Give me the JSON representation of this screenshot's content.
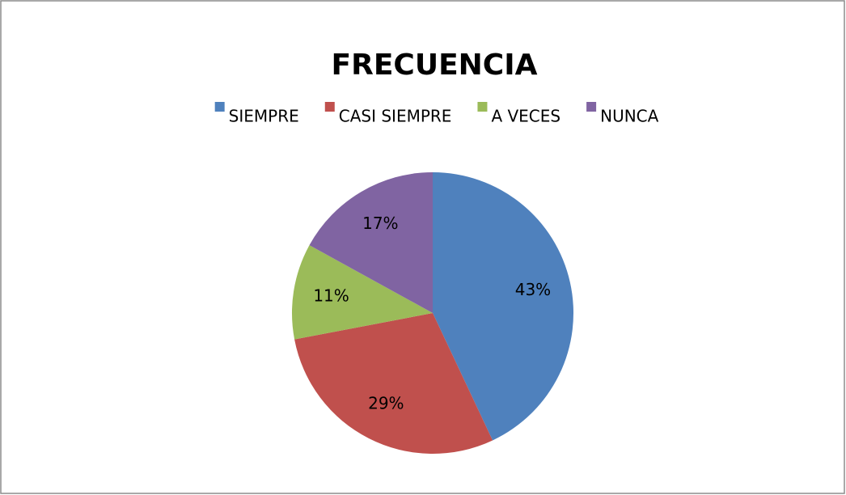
{
  "chart_data": {
    "type": "pie",
    "title": "FRECUENCIA",
    "categories": [
      "SIEMPRE",
      "CASI SIEMPRE",
      "A VECES",
      "NUNCA"
    ],
    "values": [
      43,
      29,
      11,
      17
    ],
    "value_labels": [
      "43%",
      "29%",
      "11%",
      "17%"
    ],
    "colors": [
      "#4f81bd",
      "#c0504d",
      "#9bbb59",
      "#8064a2"
    ],
    "legend": "top"
  }
}
